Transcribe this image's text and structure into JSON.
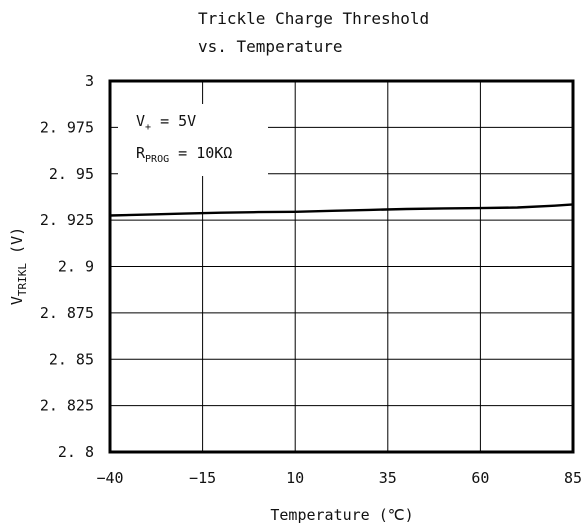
{
  "chart_data": {
    "type": "line",
    "title_line1": "Trickle Charge Threshold",
    "title_line2": "vs. Temperature",
    "xlabel": "Temperature (℃)",
    "ylabel_main": "V",
    "ylabel_sub": "TRIKL",
    "ylabel_unit": " (V)",
    "xlim": [
      -40,
      85
    ],
    "ylim": [
      2.8,
      3.0
    ],
    "x_ticks": [
      -40,
      -15,
      10,
      35,
      60,
      85
    ],
    "x_tick_labels": [
      "−40",
      "−15",
      "10",
      "35",
      "60",
      "85"
    ],
    "y_ticks": [
      2.8,
      2.825,
      2.85,
      2.875,
      2.9,
      2.925,
      2.95,
      2.975,
      3.0
    ],
    "y_tick_labels": [
      "2. 8",
      "2. 825",
      "2. 85",
      "2. 875",
      "2. 9",
      "2. 925",
      "2. 95",
      "2. 975",
      "3"
    ],
    "grid": true,
    "annotations": {
      "vplus_main": "V",
      "vplus_sub": "+",
      "vplus_value": " = 5V",
      "rprog_main": "R",
      "rprog_sub": "PROG",
      "rprog_value": " = 10KΩ"
    },
    "series": [
      {
        "x": [
          -40,
          -30,
          -20,
          -10,
          0,
          10,
          20,
          30,
          40,
          50,
          60,
          70,
          80,
          85
        ],
        "y": [
          2.9275,
          2.928,
          2.9285,
          2.929,
          2.9293,
          2.9295,
          2.93,
          2.9305,
          2.931,
          2.9313,
          2.9315,
          2.9318,
          2.9328,
          2.9335
        ]
      }
    ]
  }
}
